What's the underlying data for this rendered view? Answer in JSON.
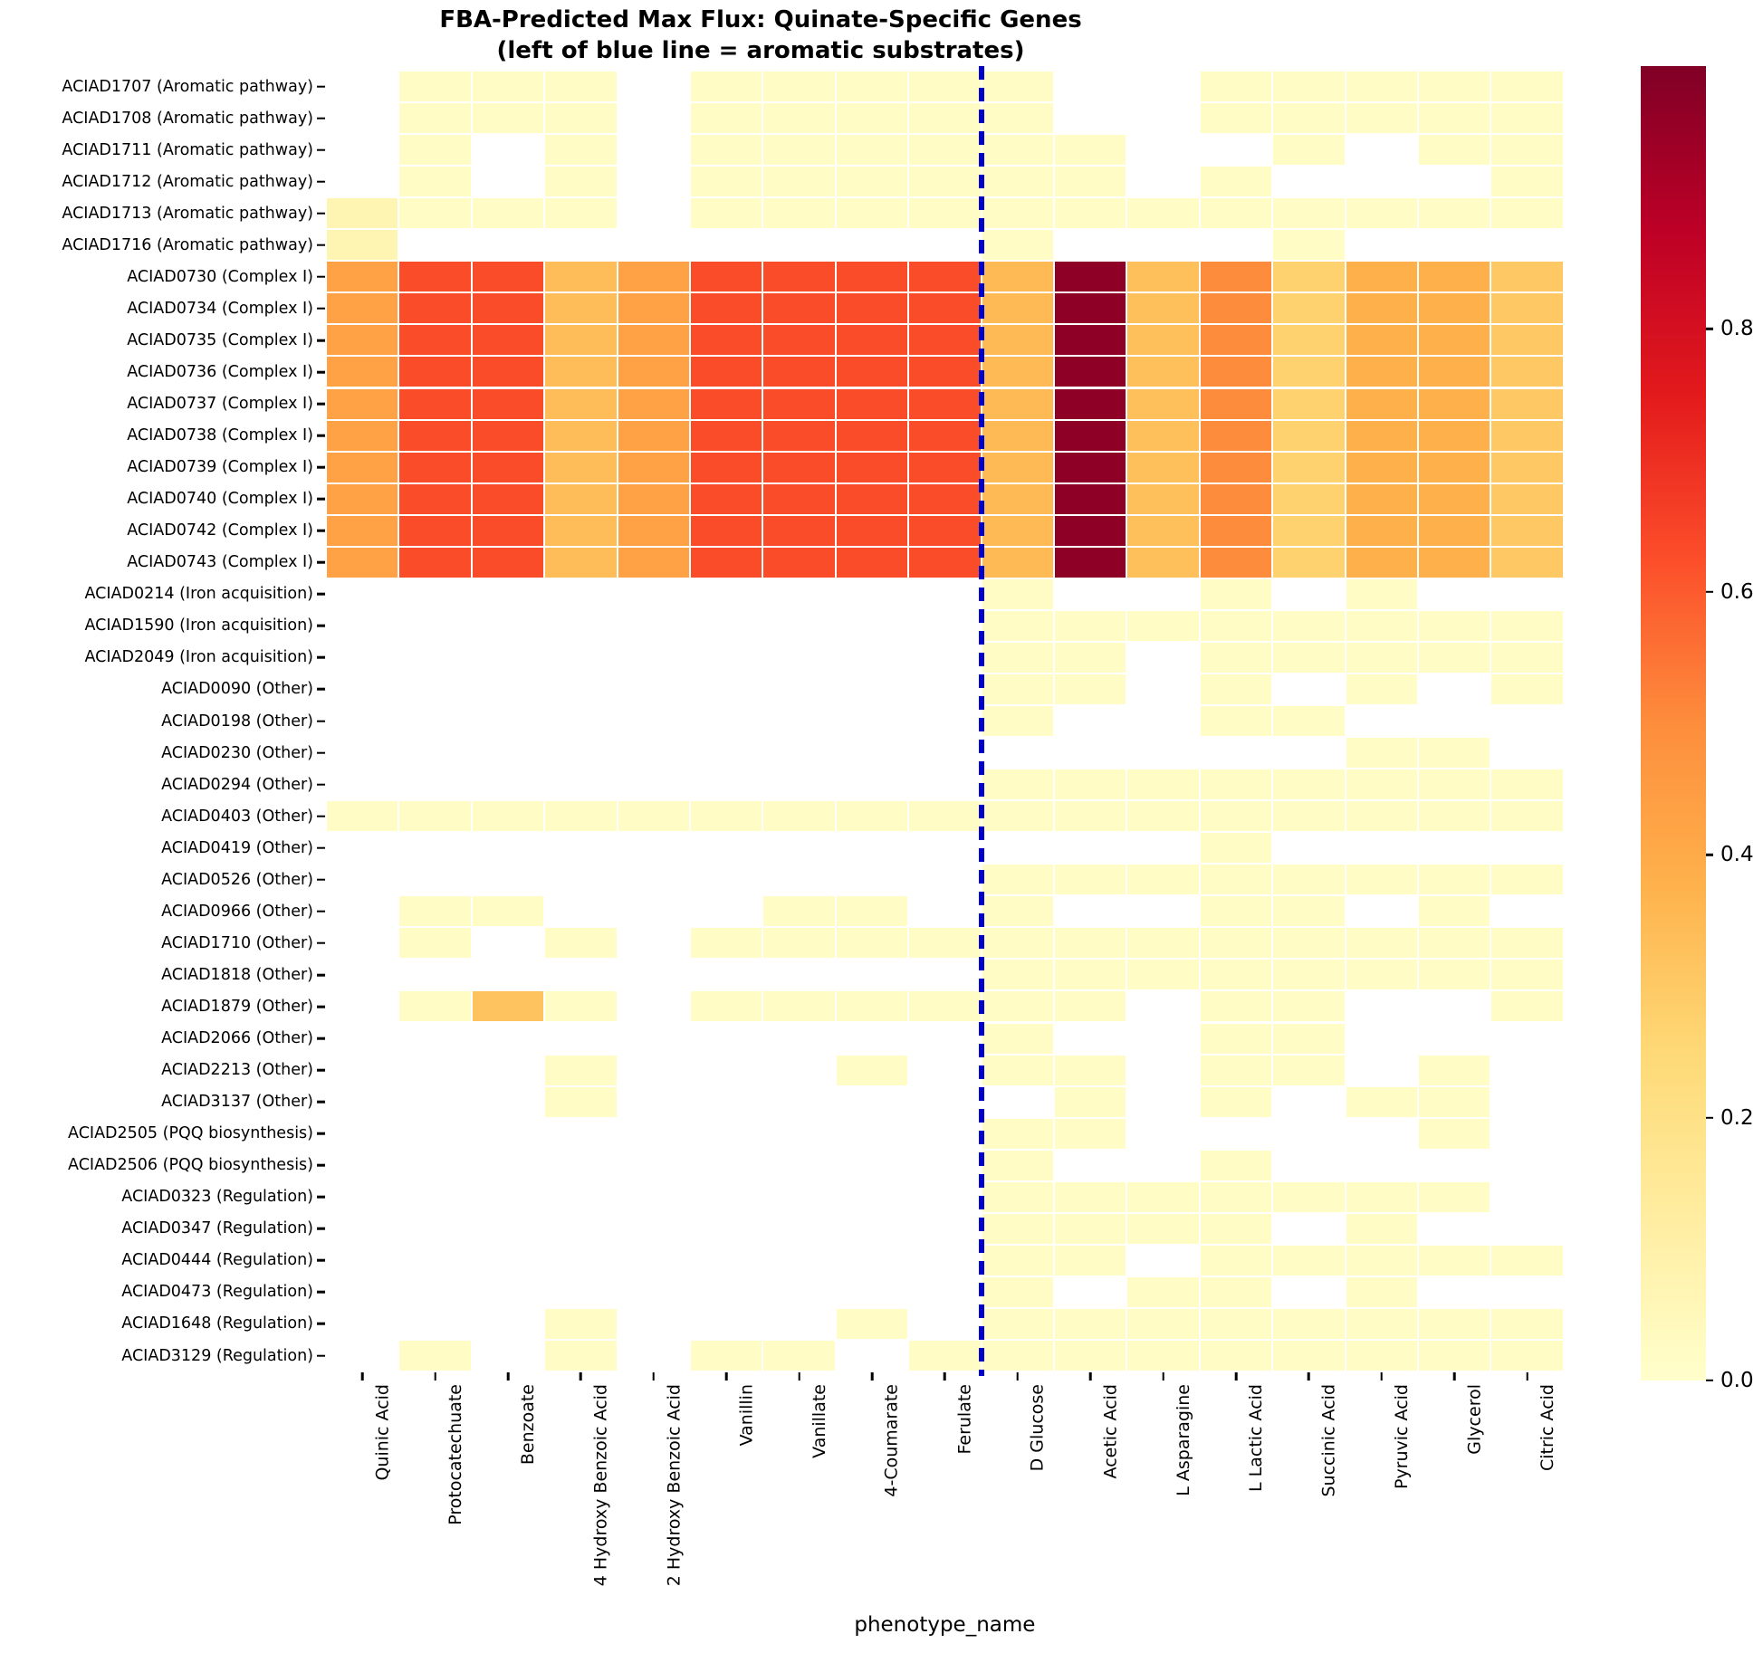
{
  "chart_data": {
    "type": "heatmap",
    "title": "FBA-Predicted Max Flux: Quinate-Specific Genes",
    "subtitle": "(left of blue line = aromatic substrates)",
    "xlabel": "phenotype_name",
    "ylabel": "",
    "colormap": "YlOrRd",
    "colormap_stops": [
      "#ffffcc",
      "#ffeda0",
      "#fed976",
      "#feb24c",
      "#fd8d3c",
      "#fc4e2a",
      "#e31a1c",
      "#bd0026",
      "#800026"
    ],
    "vmin": 0.0,
    "vmax": 1.0,
    "colorbar_ticks": [
      "0.8",
      "0.6",
      "0.4",
      "0.2",
      "0.0"
    ],
    "colorbar_tick_values": [
      0.8,
      0.6,
      0.4,
      0.2,
      0.0
    ],
    "divider_color": "#0000cd",
    "divider_after_column": 9,
    "grid": "white cell borders",
    "legend_position": "right colorbar",
    "categories": [
      "Quinic Acid",
      "Protocatechuate",
      "Benzoate",
      "4 Hydroxy Benzoic Acid",
      "2 Hydroxy Benzoic Acid",
      "Vanillin",
      "Vanillate",
      "4-Coumarate",
      "Ferulate",
      "D Glucose",
      "Acetic Acid",
      "L Asparagine",
      "L Lactic Acid",
      "Succinic Acid",
      "Pyruvic Acid",
      "Glycerol",
      "Citric Acid"
    ],
    "rows": [
      {
        "gene": "ACIAD1707 (Aromatic pathway)",
        "values": [
          null,
          0.02,
          0.02,
          0.02,
          null,
          0.02,
          0.02,
          0.02,
          0.02,
          0.02,
          null,
          null,
          0.02,
          0.02,
          0.02,
          0.02,
          0.02
        ]
      },
      {
        "gene": "ACIAD1708 (Aromatic pathway)",
        "values": [
          null,
          0.02,
          0.02,
          0.02,
          null,
          0.02,
          0.02,
          0.02,
          0.02,
          0.02,
          null,
          null,
          0.02,
          0.02,
          0.02,
          0.02,
          0.02
        ]
      },
      {
        "gene": "ACIAD1711 (Aromatic pathway)",
        "values": [
          null,
          0.02,
          null,
          0.02,
          null,
          0.02,
          0.02,
          0.02,
          0.02,
          0.02,
          0.02,
          null,
          null,
          0.02,
          null,
          0.02,
          0.02
        ]
      },
      {
        "gene": "ACIAD1712 (Aromatic pathway)",
        "values": [
          null,
          0.02,
          null,
          0.02,
          null,
          0.02,
          0.02,
          0.02,
          0.02,
          0.02,
          0.02,
          null,
          0.02,
          null,
          null,
          null,
          0.02
        ]
      },
      {
        "gene": "ACIAD1713 (Aromatic pathway)",
        "values": [
          0.07,
          0.02,
          0.02,
          0.02,
          null,
          0.02,
          0.02,
          0.02,
          0.02,
          0.02,
          0.02,
          0.02,
          0.02,
          0.02,
          0.02,
          0.02,
          0.02
        ]
      },
      {
        "gene": "ACIAD1716 (Aromatic pathway)",
        "values": [
          0.07,
          null,
          null,
          null,
          null,
          null,
          null,
          null,
          null,
          0.02,
          null,
          null,
          null,
          0.02,
          null,
          null,
          null
        ]
      },
      {
        "gene": "ACIAD0730 (Complex I)",
        "values": [
          0.43,
          0.63,
          0.63,
          0.34,
          0.43,
          0.63,
          0.63,
          0.63,
          0.63,
          0.35,
          0.97,
          0.33,
          0.5,
          0.27,
          0.38,
          0.38,
          0.3
        ]
      },
      {
        "gene": "ACIAD0734 (Complex I)",
        "values": [
          0.43,
          0.63,
          0.63,
          0.34,
          0.43,
          0.63,
          0.63,
          0.63,
          0.63,
          0.35,
          0.97,
          0.33,
          0.5,
          0.27,
          0.38,
          0.38,
          0.3
        ]
      },
      {
        "gene": "ACIAD0735 (Complex I)",
        "values": [
          0.43,
          0.63,
          0.63,
          0.34,
          0.43,
          0.63,
          0.63,
          0.63,
          0.63,
          0.35,
          0.97,
          0.33,
          0.5,
          0.27,
          0.38,
          0.38,
          0.3
        ]
      },
      {
        "gene": "ACIAD0736 (Complex I)",
        "values": [
          0.43,
          0.63,
          0.63,
          0.34,
          0.43,
          0.63,
          0.63,
          0.63,
          0.63,
          0.35,
          0.97,
          0.33,
          0.5,
          0.27,
          0.38,
          0.38,
          0.3
        ]
      },
      {
        "gene": "ACIAD0737 (Complex I)",
        "values": [
          0.43,
          0.63,
          0.63,
          0.34,
          0.43,
          0.63,
          0.63,
          0.63,
          0.63,
          0.35,
          0.97,
          0.33,
          0.5,
          0.27,
          0.38,
          0.38,
          0.3
        ]
      },
      {
        "gene": "ACIAD0738 (Complex I)",
        "values": [
          0.43,
          0.63,
          0.63,
          0.34,
          0.43,
          0.63,
          0.63,
          0.63,
          0.63,
          0.35,
          0.97,
          0.33,
          0.5,
          0.27,
          0.38,
          0.38,
          0.3
        ]
      },
      {
        "gene": "ACIAD0739 (Complex I)",
        "values": [
          0.43,
          0.63,
          0.63,
          0.34,
          0.43,
          0.63,
          0.63,
          0.63,
          0.63,
          0.35,
          0.97,
          0.33,
          0.5,
          0.27,
          0.38,
          0.38,
          0.3
        ]
      },
      {
        "gene": "ACIAD0740 (Complex I)",
        "values": [
          0.43,
          0.63,
          0.63,
          0.34,
          0.43,
          0.63,
          0.63,
          0.63,
          0.63,
          0.35,
          0.97,
          0.33,
          0.5,
          0.27,
          0.38,
          0.38,
          0.3
        ]
      },
      {
        "gene": "ACIAD0742 (Complex I)",
        "values": [
          0.43,
          0.63,
          0.63,
          0.34,
          0.43,
          0.63,
          0.63,
          0.63,
          0.63,
          0.35,
          0.97,
          0.33,
          0.5,
          0.27,
          0.38,
          0.38,
          0.3
        ]
      },
      {
        "gene": "ACIAD0743 (Complex I)",
        "values": [
          0.43,
          0.63,
          0.63,
          0.34,
          0.43,
          0.63,
          0.63,
          0.63,
          0.63,
          0.35,
          0.97,
          0.33,
          0.5,
          0.27,
          0.38,
          0.38,
          0.3
        ]
      },
      {
        "gene": "ACIAD0214 (Iron acquisition)",
        "values": [
          null,
          null,
          null,
          null,
          null,
          null,
          null,
          null,
          null,
          0.02,
          null,
          null,
          0.02,
          null,
          0.02,
          null,
          null
        ]
      },
      {
        "gene": "ACIAD1590 (Iron acquisition)",
        "values": [
          null,
          null,
          null,
          null,
          null,
          null,
          null,
          null,
          null,
          0.02,
          0.02,
          0.02,
          0.02,
          0.02,
          0.02,
          0.02,
          0.02
        ]
      },
      {
        "gene": "ACIAD2049 (Iron acquisition)",
        "values": [
          null,
          null,
          null,
          null,
          null,
          null,
          null,
          null,
          null,
          0.02,
          0.02,
          null,
          0.02,
          0.02,
          0.02,
          0.02,
          0.02
        ]
      },
      {
        "gene": "ACIAD0090 (Other)",
        "values": [
          null,
          null,
          null,
          null,
          null,
          null,
          null,
          null,
          null,
          0.02,
          0.02,
          null,
          0.02,
          null,
          0.02,
          null,
          0.02
        ]
      },
      {
        "gene": "ACIAD0198 (Other)",
        "values": [
          null,
          null,
          null,
          null,
          null,
          null,
          null,
          null,
          null,
          0.02,
          null,
          null,
          0.02,
          0.02,
          null,
          null,
          null
        ]
      },
      {
        "gene": "ACIAD0230 (Other)",
        "values": [
          null,
          null,
          null,
          null,
          null,
          null,
          null,
          null,
          null,
          null,
          null,
          null,
          null,
          null,
          0.02,
          0.02,
          null
        ]
      },
      {
        "gene": "ACIAD0294 (Other)",
        "values": [
          null,
          null,
          null,
          null,
          null,
          null,
          null,
          null,
          null,
          0.02,
          0.02,
          0.02,
          0.02,
          0.02,
          0.02,
          0.02,
          0.02
        ]
      },
      {
        "gene": "ACIAD0403 (Other)",
        "values": [
          0.02,
          0.02,
          0.02,
          0.02,
          0.02,
          0.02,
          0.02,
          0.02,
          0.02,
          0.02,
          0.02,
          0.02,
          0.02,
          0.02,
          0.02,
          0.02,
          0.02
        ]
      },
      {
        "gene": "ACIAD0419 (Other)",
        "values": [
          null,
          null,
          null,
          null,
          null,
          null,
          null,
          null,
          null,
          null,
          null,
          null,
          0.02,
          null,
          null,
          null,
          null
        ]
      },
      {
        "gene": "ACIAD0526 (Other)",
        "values": [
          null,
          null,
          null,
          null,
          null,
          null,
          null,
          null,
          null,
          0.02,
          0.02,
          0.02,
          0.02,
          0.02,
          0.02,
          0.02,
          0.02
        ]
      },
      {
        "gene": "ACIAD0966 (Other)",
        "values": [
          null,
          0.02,
          0.02,
          null,
          null,
          null,
          0.02,
          0.02,
          null,
          0.02,
          null,
          null,
          0.02,
          0.02,
          null,
          0.02,
          null
        ]
      },
      {
        "gene": "ACIAD1710 (Other)",
        "values": [
          null,
          0.02,
          null,
          0.02,
          null,
          0.02,
          0.02,
          0.02,
          0.02,
          0.02,
          0.02,
          0.02,
          0.02,
          0.02,
          0.02,
          0.02,
          0.02
        ]
      },
      {
        "gene": "ACIAD1818 (Other)",
        "values": [
          null,
          null,
          null,
          null,
          null,
          null,
          null,
          null,
          null,
          0.02,
          0.02,
          0.02,
          0.02,
          0.02,
          0.02,
          0.02,
          0.02
        ]
      },
      {
        "gene": "ACIAD1879 (Other)",
        "values": [
          null,
          0.02,
          0.32,
          0.02,
          null,
          0.02,
          0.02,
          0.02,
          0.02,
          0.02,
          0.02,
          null,
          0.02,
          0.02,
          null,
          null,
          0.02
        ]
      },
      {
        "gene": "ACIAD2066 (Other)",
        "values": [
          null,
          null,
          null,
          null,
          null,
          null,
          null,
          null,
          null,
          0.02,
          null,
          null,
          0.02,
          0.02,
          null,
          null,
          null
        ]
      },
      {
        "gene": "ACIAD2213 (Other)",
        "values": [
          null,
          null,
          null,
          0.02,
          null,
          null,
          null,
          0.02,
          null,
          0.02,
          0.02,
          null,
          0.02,
          0.02,
          null,
          0.02,
          null
        ]
      },
      {
        "gene": "ACIAD3137 (Other)",
        "values": [
          null,
          null,
          null,
          0.02,
          null,
          null,
          null,
          null,
          null,
          null,
          0.02,
          null,
          0.02,
          null,
          0.02,
          0.02,
          null
        ]
      },
      {
        "gene": "ACIAD2505 (PQQ biosynthesis)",
        "values": [
          null,
          null,
          null,
          null,
          null,
          null,
          null,
          null,
          null,
          0.02,
          0.02,
          null,
          null,
          null,
          null,
          0.02,
          null
        ]
      },
      {
        "gene": "ACIAD2506 (PQQ biosynthesis)",
        "values": [
          null,
          null,
          null,
          null,
          null,
          null,
          null,
          null,
          null,
          0.02,
          null,
          null,
          0.02,
          null,
          null,
          null,
          null
        ]
      },
      {
        "gene": "ACIAD0323 (Regulation)",
        "values": [
          null,
          null,
          null,
          null,
          null,
          null,
          null,
          null,
          null,
          0.02,
          0.02,
          0.02,
          0.02,
          0.02,
          0.02,
          0.02,
          null
        ]
      },
      {
        "gene": "ACIAD0347 (Regulation)",
        "values": [
          null,
          null,
          null,
          null,
          null,
          null,
          null,
          null,
          null,
          0.02,
          0.02,
          0.02,
          0.02,
          null,
          0.02,
          null,
          null
        ]
      },
      {
        "gene": "ACIAD0444 (Regulation)",
        "values": [
          null,
          null,
          null,
          null,
          null,
          null,
          null,
          null,
          null,
          0.02,
          0.02,
          null,
          0.02,
          0.02,
          0.02,
          0.02,
          0.02
        ]
      },
      {
        "gene": "ACIAD0473 (Regulation)",
        "values": [
          null,
          null,
          null,
          null,
          null,
          null,
          null,
          null,
          null,
          0.02,
          null,
          0.02,
          0.02,
          null,
          0.02,
          null,
          null
        ]
      },
      {
        "gene": "ACIAD1648 (Regulation)",
        "values": [
          null,
          null,
          null,
          0.02,
          null,
          null,
          null,
          0.02,
          null,
          0.02,
          0.02,
          0.02,
          0.02,
          0.02,
          0.02,
          0.02,
          0.02
        ]
      },
      {
        "gene": "ACIAD3129 (Regulation)",
        "values": [
          null,
          0.02,
          null,
          0.02,
          null,
          0.02,
          0.02,
          null,
          0.02,
          0.02,
          0.02,
          0.02,
          0.02,
          0.02,
          0.02,
          0.02,
          0.02
        ]
      }
    ]
  }
}
